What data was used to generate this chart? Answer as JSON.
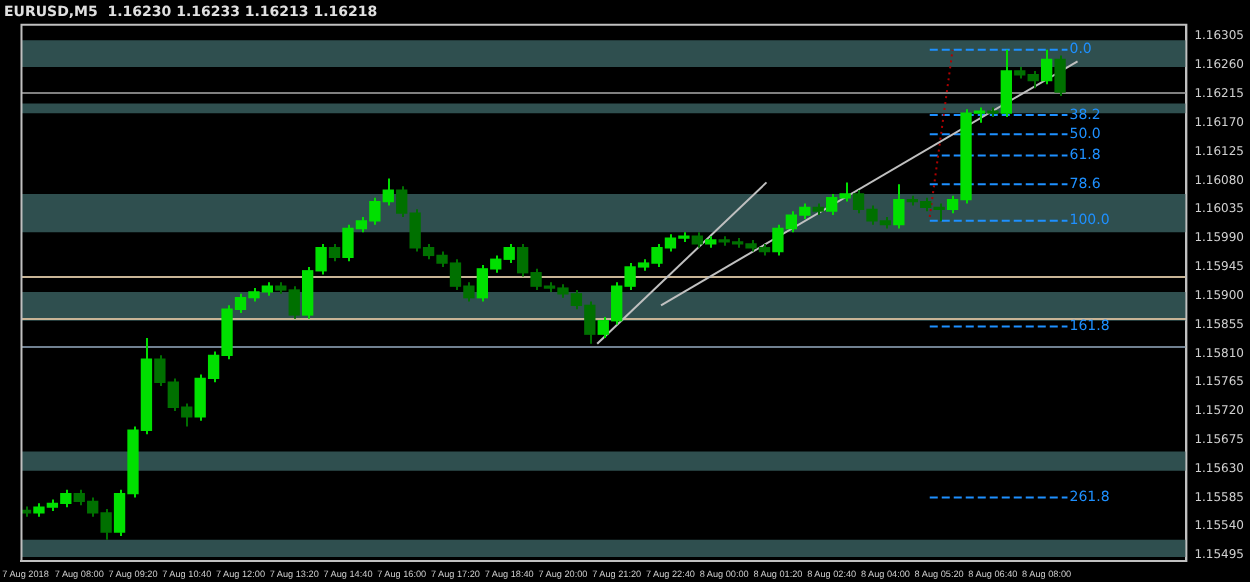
{
  "chart_data": {
    "type": "candlestick",
    "title": "EURUSD,M5  1.16230 1.16233 1.16213 1.16218",
    "xlim": [
      "2018-08-07T06:34",
      "2018-08-08T11:28"
    ],
    "xticks": [
      {
        "value": "2018-08-07T06:40",
        "label": "7 Aug 2018"
      },
      {
        "value": "2018-08-07T08:00",
        "label": "7 Aug 08:00"
      },
      {
        "value": "2018-08-07T09:20",
        "label": "7 Aug 09:20"
      },
      {
        "value": "2018-08-07T10:40",
        "label": "7 Aug 10:40"
      },
      {
        "value": "2018-08-07T12:00",
        "label": "7 Aug 12:00"
      },
      {
        "value": "2018-08-07T13:20",
        "label": "7 Aug 13:20"
      },
      {
        "value": "2018-08-07T14:40",
        "label": "7 Aug 14:40"
      },
      {
        "value": "2018-08-07T16:00",
        "label": "7 Aug 16:00"
      },
      {
        "value": "2018-08-07T17:20",
        "label": "7 Aug 17:20"
      },
      {
        "value": "2018-08-07T18:40",
        "label": "7 Aug 18:40"
      },
      {
        "value": "2018-08-07T20:00",
        "label": "7 Aug 20:00"
      },
      {
        "value": "2018-08-07T21:20",
        "label": "7 Aug 21:20"
      },
      {
        "value": "2018-08-07T22:40",
        "label": "7 Aug 22:40"
      },
      {
        "value": "2018-08-08T00:00",
        "label": "8 Aug 00:00"
      },
      {
        "value": "2018-08-08T01:20",
        "label": "8 Aug 01:20"
      },
      {
        "value": "2018-08-08T02:40",
        "label": "8 Aug 02:40"
      },
      {
        "value": "2018-08-08T04:00",
        "label": "8 Aug 04:00"
      },
      {
        "value": "2018-08-08T05:20",
        "label": "8 Aug 05:20"
      },
      {
        "value": "2018-08-08T06:40",
        "label": "8 Aug 06:40"
      },
      {
        "value": "2018-08-08T08:00",
        "label": "8 Aug 08:00"
      }
    ],
    "ylim": [
      1.15486,
      1.16323
    ],
    "yticks": [
      {
        "value": 1.15495,
        "label": "1.15495"
      },
      {
        "value": 1.1554,
        "label": "1.15540"
      },
      {
        "value": 1.15585,
        "label": "1.15585"
      },
      {
        "value": 1.1563,
        "label": "1.15630"
      },
      {
        "value": 1.15675,
        "label": "1.15675"
      },
      {
        "value": 1.1572,
        "label": "1.15720"
      },
      {
        "value": 1.15765,
        "label": "1.15765"
      },
      {
        "value": 1.1581,
        "label": "1.15810"
      },
      {
        "value": 1.15855,
        "label": "1.15855"
      },
      {
        "value": 1.159,
        "label": "1.15900"
      },
      {
        "value": 1.15945,
        "label": "1.15945"
      },
      {
        "value": 1.1599,
        "label": "1.15990"
      },
      {
        "value": 1.16035,
        "label": "1.16035"
      },
      {
        "value": 1.1608,
        "label": "1.16080"
      },
      {
        "value": 1.16125,
        "label": "1.16125"
      },
      {
        "value": 1.1617,
        "label": "1.16170"
      },
      {
        "value": 1.16215,
        "label": "1.16215"
      },
      {
        "value": 1.1626,
        "label": "1.16260"
      },
      {
        "value": 1.16305,
        "label": "1.16305"
      }
    ],
    "grid": false,
    "legend": false,
    "bands": [
      {
        "axis": "y",
        "from": 1.16257,
        "to": 1.16299,
        "color": "#2f4f4f"
      },
      {
        "axis": "y",
        "from": 1.15999,
        "to": 1.16059,
        "color": "#2f4f4f"
      },
      {
        "axis": "y",
        "from": 1.15861,
        "to": 1.15906,
        "color": "#2f4f4f"
      },
      {
        "axis": "y",
        "from": 1.15627,
        "to": 1.15657,
        "color": "#2f4f4f"
      },
      {
        "axis": "y",
        "from": 1.15492,
        "to": 1.15519,
        "color": "#2f4f4f"
      },
      {
        "axis": "y",
        "from": 1.16185,
        "to": 1.162,
        "color": "#2f4f4f"
      }
    ],
    "ref_lines": [
      {
        "axis": "y",
        "value": 1.16218,
        "color": "#808080"
      },
      {
        "axis": "y",
        "value": 1.1593,
        "color": "#c8b496"
      },
      {
        "axis": "y",
        "value": 1.15864,
        "color": "#c8b496"
      },
      {
        "axis": "y",
        "value": 1.15822,
        "color": "#708090"
      }
    ],
    "annotations": [
      {
        "text": "0.0",
        "x": "2018-08-08T08:31",
        "y": 1.16284
      },
      {
        "text": "38.2",
        "x": "2018-08-08T08:31",
        "y": 1.16182
      },
      {
        "text": "50.0",
        "x": "2018-08-08T08:31",
        "y": 1.16152
      },
      {
        "text": "61.8",
        "x": "2018-08-08T08:31",
        "y": 1.16119
      },
      {
        "text": "78.6",
        "x": "2018-08-08T08:31",
        "y": 1.16074
      },
      {
        "text": "100.0",
        "x": "2018-08-08T08:31",
        "y": 1.16017
      },
      {
        "text": "161.8",
        "x": "2018-08-08T08:31",
        "y": 1.15852
      },
      {
        "text": "261.8",
        "x": "2018-08-08T08:31",
        "y": 1.15585
      }
    ],
    "series": [
      {
        "type": "candlestick",
        "colors": [
          "#007000",
          "#00e000",
          "#00e000",
          "#00e000",
          "#007000",
          "#007000",
          "#007000",
          "#00e000",
          "#00e000",
          "#00e000",
          "#007000",
          "#007000",
          "#007000",
          "#00e000",
          "#00e000",
          "#00e000",
          "#00e000",
          "#00e000",
          "#00e000",
          "#007000",
          "#007000",
          "#00e000",
          "#00e000",
          "#007000",
          "#00e000",
          "#00e000",
          "#00e000",
          "#00e000",
          "#007000",
          "#007000",
          "#007000",
          "#007000",
          "#007000",
          "#007000",
          "#00e000",
          "#00e000",
          "#00e000",
          "#007000",
          "#007000",
          "#007000",
          "#007000",
          "#007000",
          "#007000",
          "#00e000",
          "#00e000",
          "#00e000",
          "#00e000",
          "#00e000",
          "#00e000",
          "#00e000",
          "#007000",
          "#00e000",
          "#007000",
          "#007000",
          "#007000",
          "#007000",
          "#00e000",
          "#00e000",
          "#00e000",
          "#007000",
          "#00e000",
          "#00e000",
          "#007000",
          "#007000",
          "#007000",
          "#00e000",
          "#007000",
          "#007000",
          "#007000",
          "#00e000",
          "#00e000",
          "#00e000",
          "#007000",
          "#00e000",
          "#007000",
          "#007000",
          "#00e000",
          "#007000"
        ],
        "x": [
          "2018-08-07T06:40",
          "2018-08-07T07:00",
          "2018-08-07T07:20",
          "2018-08-07T07:40",
          "2018-08-07T08:00",
          "2018-08-07T08:20",
          "2018-08-07T08:40",
          "2018-08-07T09:00",
          "2018-08-07T09:20",
          "2018-08-07T09:40",
          "2018-08-07T10:00",
          "2018-08-07T10:20",
          "2018-08-07T10:40",
          "2018-08-07T11:00",
          "2018-08-07T11:20",
          "2018-08-07T11:40",
          "2018-08-07T12:00",
          "2018-08-07T12:20",
          "2018-08-07T12:40",
          "2018-08-07T13:00",
          "2018-08-07T13:20",
          "2018-08-07T13:40",
          "2018-08-07T14:00",
          "2018-08-07T14:20",
          "2018-08-07T14:40",
          "2018-08-07T15:00",
          "2018-08-07T15:20",
          "2018-08-07T15:40",
          "2018-08-07T16:00",
          "2018-08-07T16:20",
          "2018-08-07T16:40",
          "2018-08-07T17:00",
          "2018-08-07T17:20",
          "2018-08-07T17:40",
          "2018-08-07T18:00",
          "2018-08-07T18:20",
          "2018-08-07T18:40",
          "2018-08-07T19:00",
          "2018-08-07T19:20",
          "2018-08-07T19:40",
          "2018-08-07T20:00",
          "2018-08-07T20:20",
          "2018-08-07T20:40",
          "2018-08-07T21:00",
          "2018-08-07T21:20",
          "2018-08-07T21:40",
          "2018-08-07T22:00",
          "2018-08-07T22:20",
          "2018-08-07T22:40",
          "2018-08-07T23:00",
          "2018-08-07T23:20",
          "2018-08-07T23:40",
          "2018-08-08T00:00",
          "2018-08-08T00:20",
          "2018-08-08T00:40",
          "2018-08-08T01:00",
          "2018-08-08T01:20",
          "2018-08-08T01:40",
          "2018-08-08T02:00",
          "2018-08-08T02:20",
          "2018-08-08T02:40",
          "2018-08-08T03:00",
          "2018-08-08T03:20",
          "2018-08-08T03:40",
          "2018-08-08T04:00",
          "2018-08-08T04:20",
          "2018-08-08T04:40",
          "2018-08-08T05:00",
          "2018-08-08T05:20",
          "2018-08-08T05:40",
          "2018-08-08T06:00",
          "2018-08-08T06:20",
          "2018-08-08T06:40",
          "2018-08-08T07:00",
          "2018-08-08T07:20",
          "2018-08-08T07:40",
          "2018-08-08T08:00",
          "2018-08-08T08:20"
        ],
        "ohlc": [
          [
            1.15565,
            1.15571,
            1.15555,
            1.15561
          ],
          [
            1.15561,
            1.15576,
            1.15555,
            1.1557
          ],
          [
            1.1557,
            1.15582,
            1.15564,
            1.15576
          ],
          [
            1.15576,
            1.15597,
            1.1557,
            1.15591
          ],
          [
            1.15591,
            1.15597,
            1.15573,
            1.15579
          ],
          [
            1.15579,
            1.15585,
            1.15555,
            1.15561
          ],
          [
            1.15561,
            1.15567,
            1.15519,
            1.15531
          ],
          [
            1.15531,
            1.15597,
            1.15525,
            1.15591
          ],
          [
            1.15591,
            1.15696,
            1.15585,
            1.1569
          ],
          [
            1.1569,
            1.15834,
            1.15684,
            1.15801
          ],
          [
            1.15801,
            1.15807,
            1.15759,
            1.15765
          ],
          [
            1.15765,
            1.15771,
            1.1572,
            1.15726
          ],
          [
            1.15726,
            1.15732,
            1.15696,
            1.15711
          ],
          [
            1.15711,
            1.15777,
            1.15705,
            1.15771
          ],
          [
            1.15771,
            1.15813,
            1.15765,
            1.15807
          ],
          [
            1.15807,
            1.15885,
            1.15801,
            1.15879
          ],
          [
            1.15879,
            1.15903,
            1.15873,
            1.15897
          ],
          [
            1.15897,
            1.15912,
            1.15891,
            1.15906
          ],
          [
            1.15906,
            1.15921,
            1.159,
            1.15915
          ],
          [
            1.15915,
            1.15921,
            1.15903,
            1.15909
          ],
          [
            1.15909,
            1.15915,
            1.15864,
            1.1587
          ],
          [
            1.1587,
            1.15945,
            1.15864,
            1.15939
          ],
          [
            1.15939,
            1.15981,
            1.15933,
            1.15975
          ],
          [
            1.15975,
            1.15981,
            1.15954,
            1.1596
          ],
          [
            1.1596,
            1.16011,
            1.15954,
            1.16005
          ],
          [
            1.16005,
            1.16023,
            1.15999,
            1.16017
          ],
          [
            1.16017,
            1.16053,
            1.16011,
            1.16047
          ],
          [
            1.16047,
            1.16083,
            1.16041,
            1.16065
          ],
          [
            1.16065,
            1.16071,
            1.16023,
            1.16029
          ],
          [
            1.16029,
            1.16035,
            1.15969,
            1.15975
          ],
          [
            1.15975,
            1.15981,
            1.15957,
            1.15963
          ],
          [
            1.15963,
            1.15969,
            1.15945,
            1.15951
          ],
          [
            1.15951,
            1.15957,
            1.15909,
            1.15915
          ],
          [
            1.15915,
            1.15921,
            1.15891,
            1.15897
          ],
          [
            1.15897,
            1.15948,
            1.15891,
            1.15942
          ],
          [
            1.15942,
            1.15963,
            1.15936,
            1.15957
          ],
          [
            1.15957,
            1.15981,
            1.15951,
            1.15975
          ],
          [
            1.15975,
            1.15981,
            1.1593,
            1.15936
          ],
          [
            1.15936,
            1.15942,
            1.15909,
            1.15915
          ],
          [
            1.15915,
            1.15921,
            1.15906,
            1.15912
          ],
          [
            1.15912,
            1.15918,
            1.15897,
            1.15903
          ],
          [
            1.15903,
            1.15909,
            1.15879,
            1.15885
          ],
          [
            1.15885,
            1.15891,
            1.15825,
            1.1584
          ],
          [
            1.1584,
            1.15867,
            1.15834,
            1.15861
          ],
          [
            1.15861,
            1.15921,
            1.15855,
            1.15915
          ],
          [
            1.15915,
            1.15951,
            1.15909,
            1.15945
          ],
          [
            1.15945,
            1.15957,
            1.15939,
            1.15951
          ],
          [
            1.15951,
            1.15981,
            1.15945,
            1.15975
          ],
          [
            1.15975,
            1.15996,
            1.15969,
            1.1599
          ],
          [
            1.1599,
            1.15999,
            1.15984,
            1.15993
          ],
          [
            1.15993,
            1.15999,
            1.15975,
            1.15981
          ],
          [
            1.15981,
            1.15993,
            1.15975,
            1.15987
          ],
          [
            1.15987,
            1.15993,
            1.15978,
            1.15984
          ],
          [
            1.15984,
            1.1599,
            1.15975,
            1.15981
          ],
          [
            1.15981,
            1.15987,
            1.15969,
            1.15975
          ],
          [
            1.15975,
            1.15981,
            1.15963,
            1.15969
          ],
          [
            1.15969,
            1.16011,
            1.15963,
            1.16005
          ],
          [
            1.16005,
            1.16032,
            1.15999,
            1.16026
          ],
          [
            1.16026,
            1.16044,
            1.1602,
            1.16038
          ],
          [
            1.16038,
            1.16044,
            1.16026,
            1.16032
          ],
          [
            1.16032,
            1.16059,
            1.16026,
            1.16053
          ],
          [
            1.16053,
            1.16077,
            1.16047,
            1.16059
          ],
          [
            1.16059,
            1.16065,
            1.16029,
            1.16035
          ],
          [
            1.16035,
            1.16041,
            1.16011,
            1.16017
          ],
          [
            1.16017,
            1.16023,
            1.16005,
            1.16011
          ],
          [
            1.16011,
            1.16074,
            1.16005,
            1.1605
          ],
          [
            1.1605,
            1.16056,
            1.16041,
            1.16047
          ],
          [
            1.16047,
            1.16053,
            1.16032,
            1.16038
          ],
          [
            1.16038,
            1.16044,
            1.16017,
            1.16035
          ],
          [
            1.16035,
            1.16056,
            1.16029,
            1.1605
          ],
          [
            1.1605,
            1.16191,
            1.16044,
            1.16185
          ],
          [
            1.16185,
            1.16194,
            1.1617,
            1.16188
          ],
          [
            1.16188,
            1.16194,
            1.16179,
            1.16185
          ],
          [
            1.16185,
            1.16284,
            1.16179,
            1.16251
          ],
          [
            1.16251,
            1.16257,
            1.16239,
            1.16245
          ],
          [
            1.16245,
            1.16251,
            1.16224,
            1.16236
          ],
          [
            1.16236,
            1.16284,
            1.1623,
            1.16269
          ],
          [
            1.16269,
            1.16275,
            1.16212,
            1.16218
          ]
        ]
      },
      {
        "type": "line",
        "color": "#c0c0c0",
        "line_style": "solid",
        "x": [
          "2018-08-07T20:51",
          "2018-08-08T01:03"
        ],
        "values": [
          1.15825,
          1.16077
        ]
      },
      {
        "type": "line",
        "color": "#c0c0c0",
        "line_style": "solid",
        "x": [
          "2018-08-07T22:26",
          "2018-08-08T08:46"
        ],
        "values": [
          1.15885,
          1.16266
        ]
      },
      {
        "type": "line",
        "color": "#b00000",
        "line_style": "dotted",
        "x": [
          "2018-08-08T05:06",
          "2018-08-08T05:40"
        ],
        "values": [
          1.16023,
          1.16284
        ]
      },
      {
        "type": "line",
        "color": "#1e90ff",
        "line_style": "dashed",
        "x": [
          "2018-08-08T05:06",
          "2018-08-08T08:31"
        ],
        "values": [
          1.16284,
          1.16284
        ]
      },
      {
        "type": "line",
        "color": "#1e90ff",
        "line_style": "dashed",
        "x": [
          "2018-08-08T05:06",
          "2018-08-08T08:31"
        ],
        "values": [
          1.16182,
          1.16182
        ]
      },
      {
        "type": "line",
        "color": "#1e90ff",
        "line_style": "dashed",
        "x": [
          "2018-08-08T05:06",
          "2018-08-08T08:31"
        ],
        "values": [
          1.16152,
          1.16152
        ]
      },
      {
        "type": "line",
        "color": "#1e90ff",
        "line_style": "dashed",
        "x": [
          "2018-08-08T05:06",
          "2018-08-08T08:31"
        ],
        "values": [
          1.16119,
          1.16119
        ]
      },
      {
        "type": "line",
        "color": "#1e90ff",
        "line_style": "dashed",
        "x": [
          "2018-08-08T05:06",
          "2018-08-08T08:31"
        ],
        "values": [
          1.16074,
          1.16074
        ]
      },
      {
        "type": "line",
        "color": "#1e90ff",
        "line_style": "dashed",
        "x": [
          "2018-08-08T05:06",
          "2018-08-08T08:31"
        ],
        "values": [
          1.16017,
          1.16017
        ]
      },
      {
        "type": "line",
        "color": "#1e90ff",
        "line_style": "dashed",
        "x": [
          "2018-08-08T05:06",
          "2018-08-08T08:31"
        ],
        "values": [
          1.15852,
          1.15852
        ]
      },
      {
        "type": "line",
        "color": "#1e90ff",
        "line_style": "dashed",
        "x": [
          "2018-08-08T05:06",
          "2018-08-08T08:31"
        ],
        "values": [
          1.15585,
          1.15585
        ]
      }
    ]
  }
}
